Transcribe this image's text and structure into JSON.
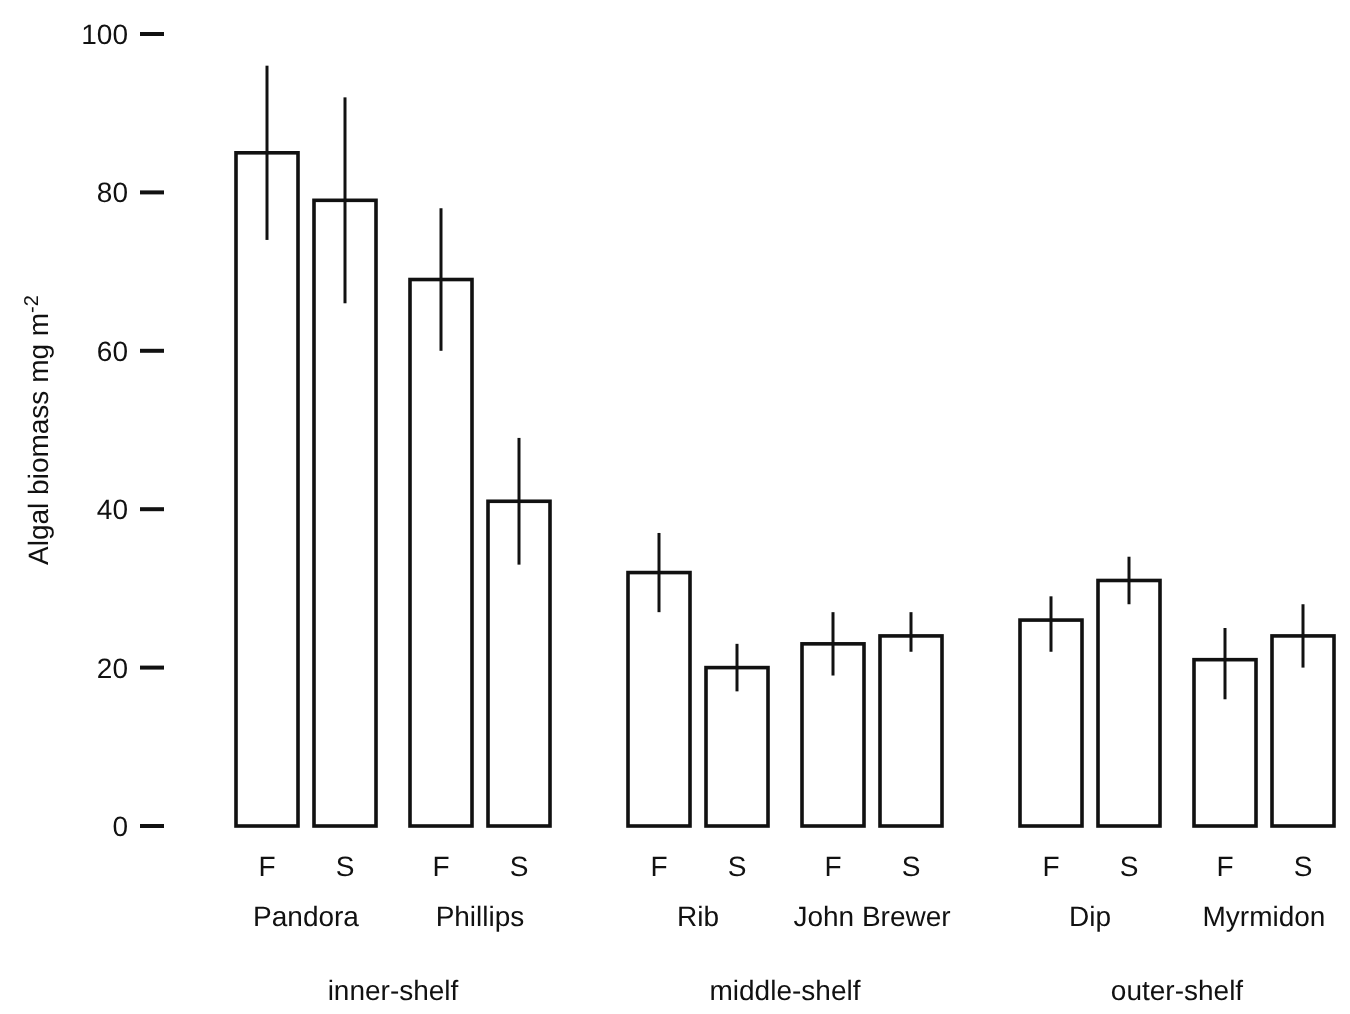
{
  "chart_data": {
    "type": "bar",
    "ylabel": "Algal biomass mg m$^{-2}$",
    "categories": [
      "F",
      "S",
      "F",
      "S",
      "F",
      "S",
      "F",
      "S",
      "F",
      "S",
      "F",
      "S"
    ],
    "values": [
      85,
      79,
      69,
      41,
      32,
      20,
      23,
      24,
      26,
      31,
      21,
      24
    ],
    "errors": [
      [
        74,
        96
      ],
      [
        66,
        92
      ],
      [
        60,
        78
      ],
      [
        33,
        49
      ],
      [
        27,
        37
      ],
      [
        17,
        23
      ],
      [
        19,
        27
      ],
      [
        22,
        27
      ],
      [
        22,
        29
      ],
      [
        28,
        34
      ],
      [
        16,
        25
      ],
      [
        20,
        28
      ]
    ],
    "color": "#ffffff",
    "ylim": [
      0,
      100
    ],
    "yticks": [
      0,
      20,
      40,
      60,
      80,
      100
    ],
    "annotations": [
      "Pandora",
      "Phillips",
      "Rib",
      "John Brewer",
      "Dip",
      "Myrmidon",
      "inner-shelf",
      "middle-shelf",
      "outer-shelf"
    ]
  }
}
